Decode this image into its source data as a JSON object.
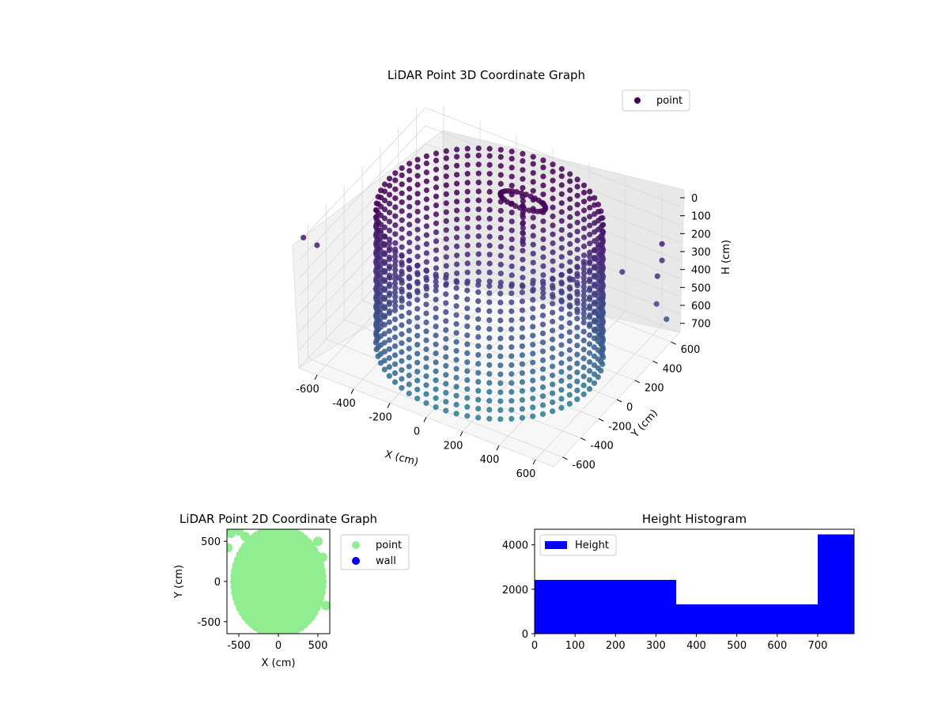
{
  "chart_data": [
    {
      "type": "scatter",
      "projection": "3d",
      "title": "LiDAR Point 3D Coordinate Graph",
      "xlabel": "X (cm)",
      "ylabel": "Y (cm)",
      "zlabel": "H (cm)",
      "xlim": [
        -700,
        700
      ],
      "ylim": [
        -700,
        700
      ],
      "zlim": [
        0,
        750
      ],
      "z_axis_inverted": true,
      "x_ticks": [
        "-600",
        "-400",
        "-200",
        "0",
        "200",
        "400",
        "600"
      ],
      "y_ticks": [
        "-600",
        "-400",
        "-200",
        "0",
        "200",
        "400",
        "600"
      ],
      "z_ticks": [
        "0",
        "100",
        "200",
        "300",
        "400",
        "500",
        "600",
        "700"
      ],
      "legend": {
        "labels": [
          "point"
        ],
        "placement": "top-right"
      },
      "colormap": "viridis",
      "series": [
        {
          "name": "point",
          "marker_color": "#440154",
          "shape": "cylindrical wall, radius approx. 550 cm, heights 0-750 cm, with a ceiling fixture near x=0, y=200 and scattered outliers",
          "wall_radius": 550,
          "ring_heights": [
            0,
            100,
            200,
            300,
            400,
            500,
            600,
            700
          ],
          "outliers": [
            {
              "x": 650,
              "y": 650,
              "z": 80
            },
            {
              "x": 620,
              "y": 600,
              "z": 180
            },
            {
              "x": 600,
              "y": 650,
              "z": 300
            },
            {
              "x": 640,
              "y": 620,
              "z": 420
            },
            {
              "x": 300,
              "y": 650,
              "z": 60
            },
            {
              "x": 150,
              "y": 620,
              "z": 120
            },
            {
              "x": 700,
              "y": 500,
              "z": 600
            },
            {
              "x": -650,
              "y": -600,
              "z": 650
            },
            {
              "x": -700,
              "y": -650,
              "z": 700
            },
            {
              "x": -200,
              "y": -700,
              "z": 700
            },
            {
              "x": -150,
              "y": -700,
              "z": 720
            },
            {
              "x": 650,
              "y": -100,
              "z": 500
            },
            {
              "x": 620,
              "y": 0,
              "z": 700
            },
            {
              "x": 680,
              "y": 100,
              "z": 650
            }
          ]
        }
      ]
    },
    {
      "type": "scatter",
      "title": "LiDAR Point 2D Coordinate Graph",
      "xlabel": "X (cm)",
      "ylabel": "Y (cm)",
      "xlim": [
        -650,
        650
      ],
      "ylim": [
        -650,
        650
      ],
      "x_ticks": [
        -500,
        0,
        500
      ],
      "y_ticks": [
        -500,
        0,
        500
      ],
      "legend": {
        "labels": [
          "point",
          "wall"
        ],
        "placement": "outside-right"
      },
      "series": [
        {
          "name": "point",
          "color": "#90ee90",
          "region": "filled ellipse",
          "center": [
            0,
            0
          ],
          "radius_x": 550,
          "radius_y": 650
        },
        {
          "name": "wall",
          "color": "#0000ff",
          "points": []
        }
      ]
    },
    {
      "type": "bar",
      "subtype": "histogram",
      "title": "Height Histogram",
      "xlim": [
        0,
        790
      ],
      "ylim": [
        0,
        4700
      ],
      "x_ticks": [
        0,
        100,
        200,
        300,
        400,
        500,
        600,
        700
      ],
      "y_ticks": [
        0,
        2000,
        4000
      ],
      "legend": {
        "labels": [
          "Height"
        ],
        "placement": "upper-left"
      },
      "series": [
        {
          "name": "Height",
          "color": "#0000ff",
          "bins": [
            {
              "start": 0,
              "end": 350,
              "count": 2420
            },
            {
              "start": 350,
              "end": 700,
              "count": 1320
            },
            {
              "start": 700,
              "end": 790,
              "count": 4470
            }
          ]
        }
      ]
    }
  ]
}
